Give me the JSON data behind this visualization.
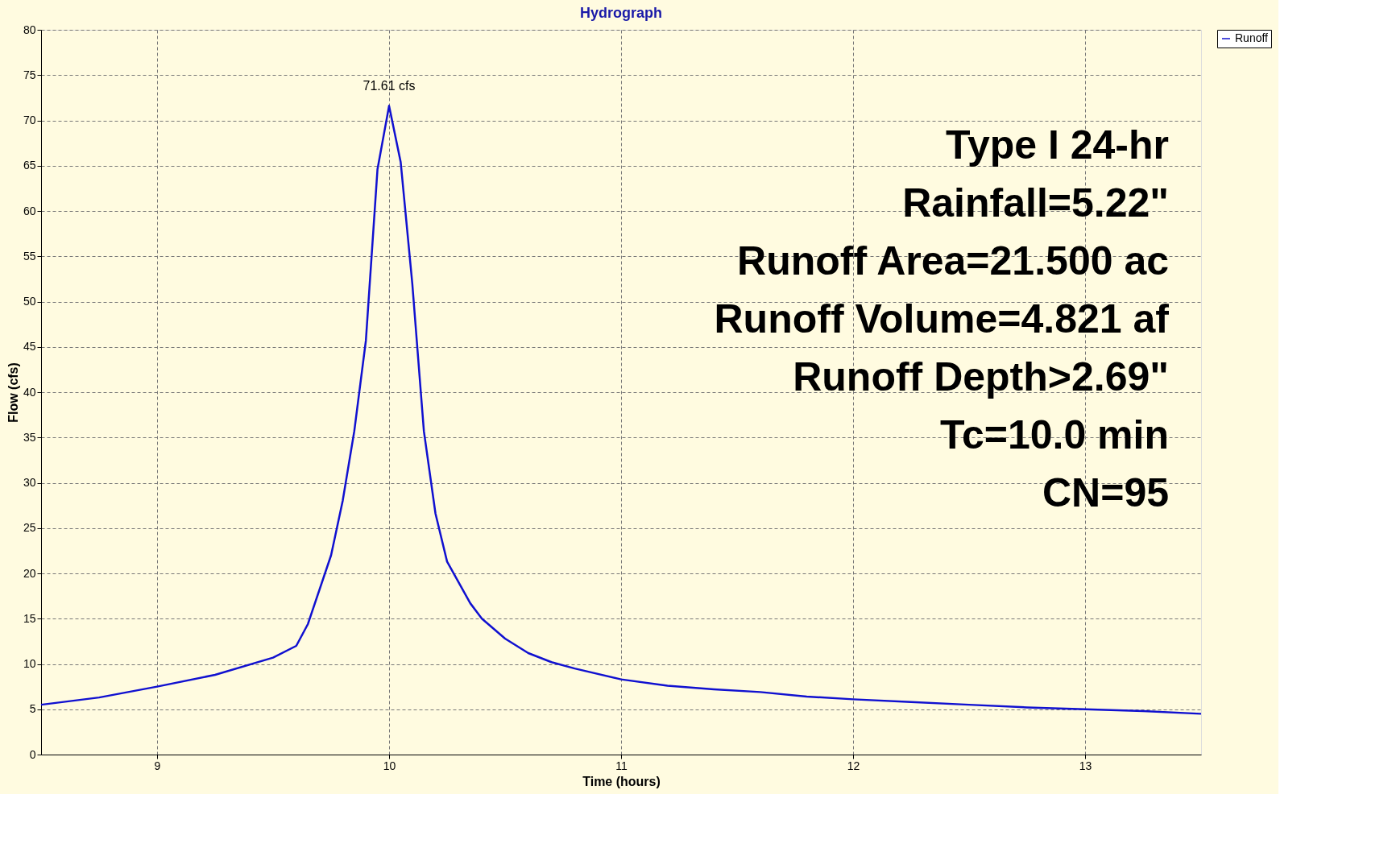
{
  "chart_data": {
    "type": "line",
    "title": "Hydrograph",
    "xlabel": "Time  (hours)",
    "ylabel": "Flow  (cfs)",
    "x": [
      8.5,
      8.75,
      9.0,
      9.25,
      9.5,
      9.6,
      9.65,
      9.75,
      9.8,
      9.85,
      9.9,
      9.95,
      10.0,
      10.05,
      10.1,
      10.15,
      10.2,
      10.25,
      10.35,
      10.4,
      10.5,
      10.6,
      10.7,
      10.8,
      11.0,
      11.2,
      11.4,
      11.6,
      11.8,
      12.0,
      12.25,
      12.5,
      12.75,
      13.0,
      13.25,
      13.5
    ],
    "series": [
      {
        "name": "Runoff",
        "color": "#1010d0",
        "values": [
          5.5,
          6.3,
          7.5,
          8.8,
          10.7,
          12,
          14.4,
          22,
          28,
          35.7,
          45.7,
          64.6,
          71.61,
          65.4,
          52,
          35.7,
          26.6,
          21.3,
          16.7,
          15,
          12.8,
          11.2,
          10.2,
          9.5,
          8.3,
          7.6,
          7.2,
          6.9,
          6.4,
          6.1,
          5.8,
          5.5,
          5.2,
          5.0,
          4.8,
          4.5
        ]
      }
    ],
    "xlim": [
      8.5,
      13.5
    ],
    "xticks": [
      9,
      10,
      11,
      12,
      13
    ],
    "ylim": [
      0,
      80
    ],
    "yticks": [
      0,
      5,
      10,
      15,
      20,
      25,
      30,
      35,
      40,
      45,
      50,
      55,
      60,
      65,
      70,
      75,
      80
    ],
    "grid": true,
    "legend": "top right",
    "marker": "none",
    "line_style": "solid",
    "annotations": [
      {
        "text": "71.61 cfs",
        "x": 10,
        "y": 71.61
      },
      "Type I 24-hr",
      "Rainfall=5.22\"",
      "Runoff Area=21.500 ac",
      "Runoff Volume=4.821 af",
      "Runoff Depth>2.69\"",
      "Tc=10.0 min",
      "CN=95"
    ]
  }
}
